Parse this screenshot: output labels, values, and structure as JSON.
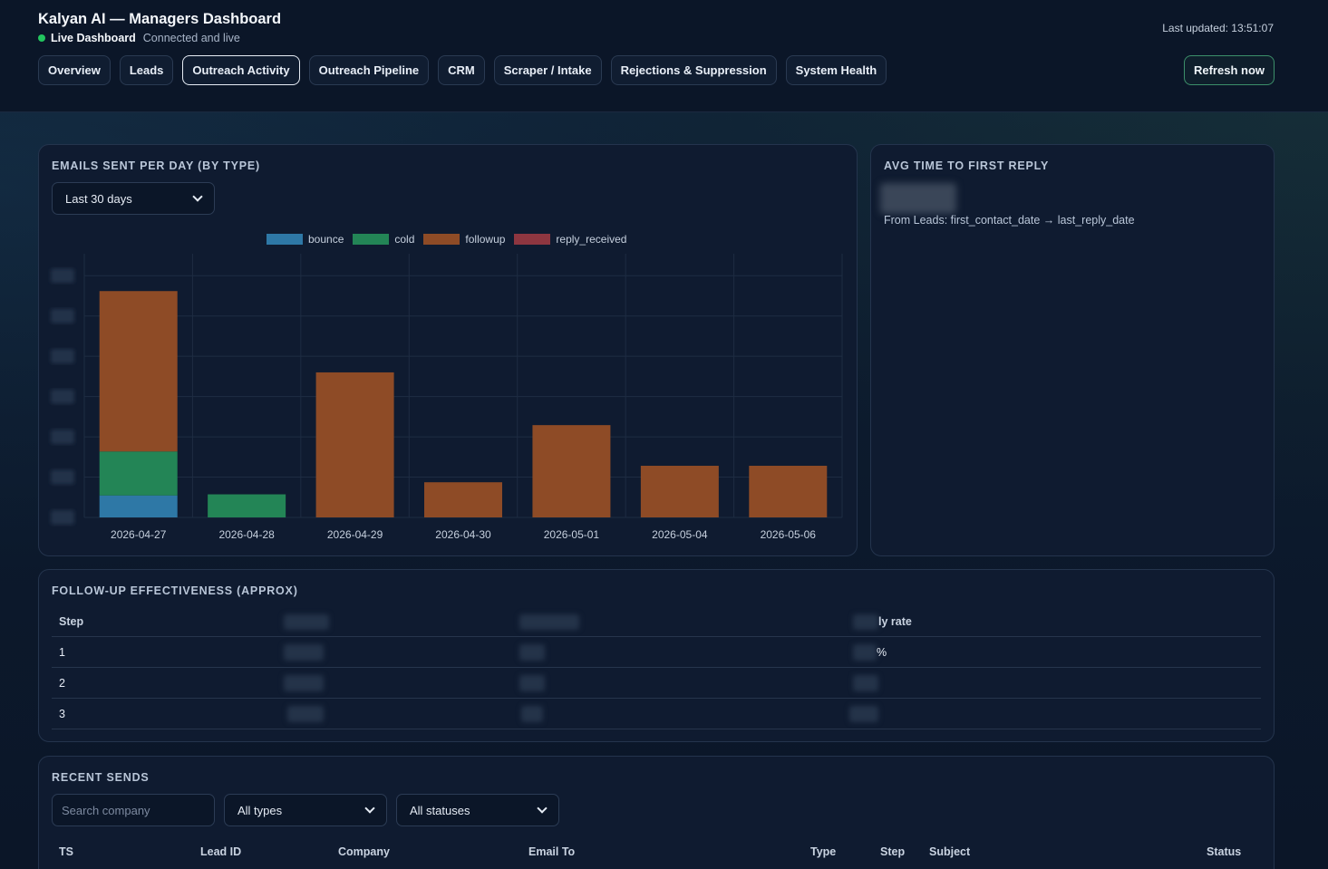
{
  "header": {
    "title": "Kalyan AI — Managers Dashboard",
    "live_label": "Live Dashboard",
    "live_status": "Connected and live",
    "last_updated": "Last updated: 13:51:07",
    "refresh_label": "Refresh now",
    "tabs": [
      {
        "label": "Overview",
        "active": false
      },
      {
        "label": "Leads",
        "active": false
      },
      {
        "label": "Outreach Activity",
        "active": true
      },
      {
        "label": "Outreach Pipeline",
        "active": false
      },
      {
        "label": "CRM",
        "active": false
      },
      {
        "label": "Scraper / Intake",
        "active": false
      },
      {
        "label": "Rejections & Suppression",
        "active": false
      },
      {
        "label": "System Health",
        "active": false
      }
    ]
  },
  "emails_card": {
    "title": "EMAILS SENT PER DAY (BY TYPE)",
    "range_select": "Last 30 days"
  },
  "chart_data": {
    "type": "bar",
    "stacked": true,
    "categories": [
      "2026-04-27",
      "2026-04-28",
      "2026-04-29",
      "2026-04-30",
      "2026-05-01",
      "2026-05-04",
      "2026-05-06"
    ],
    "series": [
      {
        "name": "bounce",
        "color": "#2e78a6",
        "values": [
          1,
          0,
          0,
          0,
          0,
          0,
          0
        ]
      },
      {
        "name": "cold",
        "color": "#238556",
        "values": [
          2,
          1.05,
          0,
          0,
          0,
          0,
          0
        ]
      },
      {
        "name": "followup",
        "color": "#8e4b26",
        "values": [
          7.3,
          0,
          6.6,
          1.6,
          4.2,
          2.35,
          2.35
        ]
      },
      {
        "name": "reply_received",
        "color": "#8e3640",
        "values": [
          0,
          0,
          0,
          0,
          0,
          0,
          0
        ]
      }
    ],
    "ylim": [
      0,
      12
    ],
    "legend": "top",
    "grid": true
  },
  "avg_card": {
    "title": "AVG TIME TO FIRST REPLY",
    "note": "From Leads: first_contact_date → last_reply_date"
  },
  "followup_card": {
    "title": "FOLLOW-UP EFFECTIVENESS (APPROX)",
    "col_step": "Step",
    "col_rate_suffix": "ly rate",
    "rows": [
      {
        "step": "1",
        "rate_suffix": "%"
      },
      {
        "step": "2",
        "rate_suffix": ""
      },
      {
        "step": "3",
        "rate_suffix": ""
      }
    ]
  },
  "recent_card": {
    "title": "RECENT SENDS",
    "search_placeholder": "Search company",
    "type_select": "All types",
    "status_select": "All statuses",
    "columns": [
      "TS",
      "Lead ID",
      "Company",
      "Email To",
      "Type",
      "Step",
      "Subject",
      "Status"
    ]
  }
}
